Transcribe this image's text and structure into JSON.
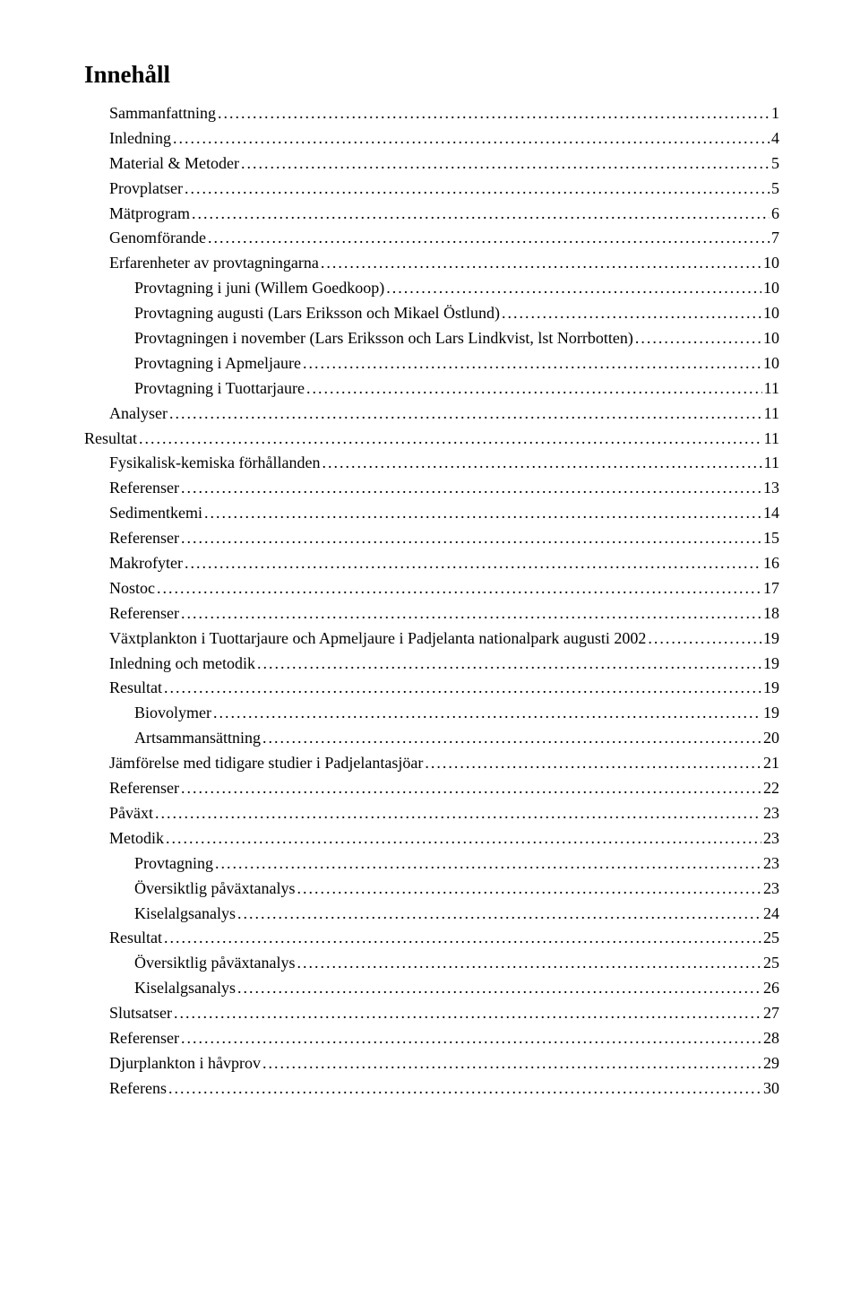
{
  "title": "Innehåll",
  "entries": [
    {
      "label": "Sammanfattning",
      "page": "1",
      "indent": 1
    },
    {
      "label": "Inledning",
      "page": "4",
      "indent": 1
    },
    {
      "label": "Material & Metoder",
      "page": "5",
      "indent": 1
    },
    {
      "label": "Provplatser",
      "page": "5",
      "indent": 1
    },
    {
      "label": "Mätprogram",
      "page": "6",
      "indent": 1
    },
    {
      "label": "Genomförande",
      "page": "7",
      "indent": 1
    },
    {
      "label": "Erfarenheter av provtagningarna",
      "page": "10",
      "indent": 1
    },
    {
      "label": "Provtagning i juni (Willem Goedkoop)",
      "page": "10",
      "indent": 2
    },
    {
      "label": "Provtagning augusti (Lars Eriksson och Mikael Östlund)",
      "page": "10",
      "indent": 2
    },
    {
      "label": "Provtagningen i november (Lars Eriksson och Lars Lindkvist, lst Norrbotten)",
      "page": "10",
      "indent": 2
    },
    {
      "label": "Provtagning i Apmeljaure",
      "page": "10",
      "indent": 2
    },
    {
      "label": "Provtagning i Tuottarjaure",
      "page": "11",
      "indent": 2
    },
    {
      "label": "Analyser",
      "page": "11",
      "indent": 1
    },
    {
      "label": "Resultat",
      "page": "11",
      "indent": 0
    },
    {
      "label": "Fysikalisk-kemiska förhållanden",
      "page": "11",
      "indent": 1
    },
    {
      "label": "Referenser",
      "page": "13",
      "indent": 1
    },
    {
      "label": "Sedimentkemi",
      "page": "14",
      "indent": 1
    },
    {
      "label": "Referenser",
      "page": "15",
      "indent": 1
    },
    {
      "label": "Makrofyter",
      "page": "16",
      "indent": 1
    },
    {
      "label": "Nostoc",
      "page": "17",
      "indent": 1
    },
    {
      "label": "Referenser",
      "page": "18",
      "indent": 1
    },
    {
      "label": "Växtplankton i Tuottarjaure och Apmeljaure i Padjelanta nationalpark augusti 2002",
      "page": "19",
      "indent": 1
    },
    {
      "label": "Inledning och metodik",
      "page": "19",
      "indent": 1
    },
    {
      "label": "Resultat",
      "page": "19",
      "indent": 1
    },
    {
      "label": "Biovolymer",
      "page": "19",
      "indent": 2
    },
    {
      "label": "Artsammansättning",
      "page": "20",
      "indent": 2
    },
    {
      "label": "Jämförelse med tidigare studier i Padjelantasjöar",
      "page": "21",
      "indent": 1
    },
    {
      "label": "Referenser",
      "page": "22",
      "indent": 1
    },
    {
      "label": "Påväxt",
      "page": "23",
      "indent": 1
    },
    {
      "label": "Metodik",
      "page": "23",
      "indent": 1
    },
    {
      "label": "Provtagning",
      "page": "23",
      "indent": 2
    },
    {
      "label": "Översiktlig påväxtanalys",
      "page": "23",
      "indent": 2
    },
    {
      "label": "Kiselalgsanalys",
      "page": "24",
      "indent": 2
    },
    {
      "label": "Resultat",
      "page": "25",
      "indent": 1
    },
    {
      "label": "Översiktlig påväxtanalys",
      "page": "25",
      "indent": 2
    },
    {
      "label": "Kiselalgsanalys",
      "page": "26",
      "indent": 2
    },
    {
      "label": "Slutsatser",
      "page": "27",
      "indent": 1
    },
    {
      "label": "Referenser",
      "page": "28",
      "indent": 1
    },
    {
      "label": "Djurplankton i håvprov",
      "page": "29",
      "indent": 1
    },
    {
      "label": "Referens",
      "page": "30",
      "indent": 1
    }
  ]
}
